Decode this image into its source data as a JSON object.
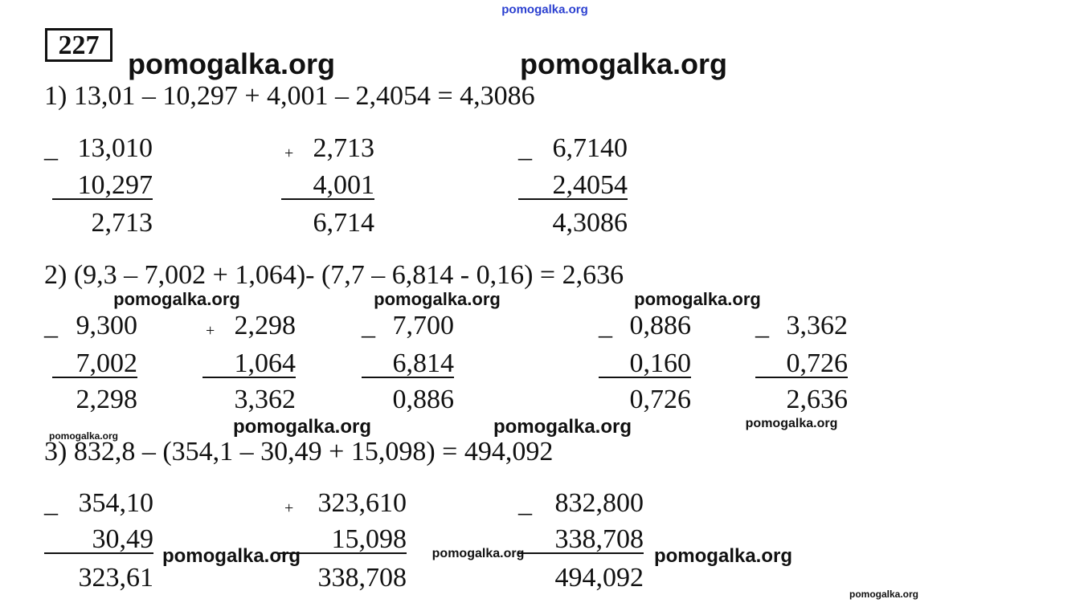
{
  "header": {
    "number": "227"
  },
  "watermarks": [
    "pomogalka.org",
    "pomogalka.org",
    "pomogalka.org",
    "pomogalka.org",
    "pomogalka.org",
    "pomogalka.org",
    "pomogalka.org",
    "pomogalka.org",
    "pomogalka.org",
    "pomogalka.org",
    "pomogalka.org",
    "pomogalka.org",
    "pomogalka.org",
    "pomogalka.org"
  ],
  "problems": [
    {
      "equation": "1) 13,01 – 10,297 + 4,001 – 2,4054 = 4,3086",
      "columns": [
        {
          "op": "_",
          "top": "13,010",
          "bottom": "10,297",
          "result": "2,713"
        },
        {
          "op": "+",
          "top": "2,713",
          "bottom": "4,001",
          "result": "6,714"
        },
        {
          "op": "_",
          "top": "6,7140",
          "bottom": "2,4054",
          "result": "4,3086"
        }
      ]
    },
    {
      "equation": "2) (9,3 – 7,002 + 1,064)- (7,7 – 6,814 - 0,16) = 2,636",
      "columns": [
        {
          "op": "_",
          "top": "9,300",
          "bottom": "7,002",
          "result": "2,298"
        },
        {
          "op": "+",
          "top": "2,298",
          "bottom": "1,064",
          "result": "3,362"
        },
        {
          "op": "_",
          "top": "7,700",
          "bottom": "6,814",
          "result": "0,886"
        },
        {
          "op": "_",
          "top": "0,886",
          "bottom": "0,160",
          "result": "0,726"
        },
        {
          "op": "_",
          "top": "3,362",
          "bottom": "0,726",
          "result": "2,636"
        }
      ]
    },
    {
      "equation": "3) 832,8 – (354,1 – 30,49 + 15,098) = 494,092",
      "columns": [
        {
          "op": "_",
          "top": "354,10",
          "bottom": "30,49",
          "result": "323,61"
        },
        {
          "op": "+",
          "top": "323,610",
          "bottom": "15,098",
          "result": "338,708"
        },
        {
          "op": "_",
          "top": "832,800",
          "bottom": "338,708",
          "result": "494,092"
        }
      ]
    }
  ]
}
